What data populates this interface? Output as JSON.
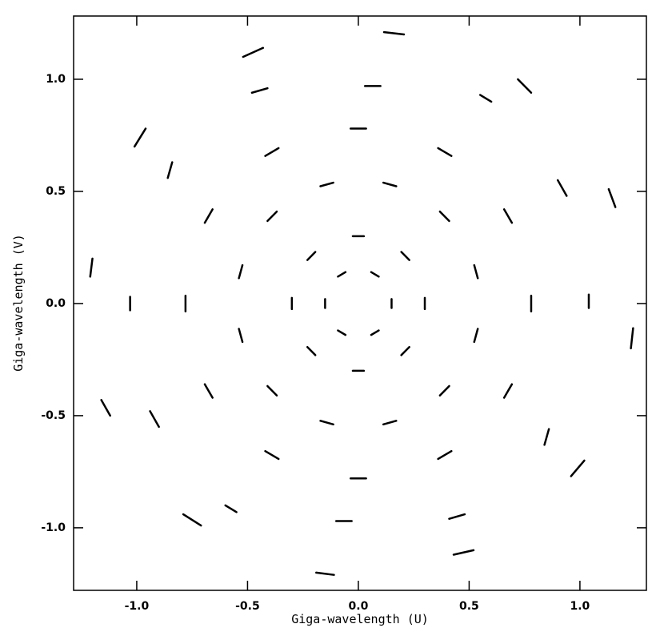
{
  "chart_data": {
    "type": "uv-tracks",
    "xlabel": "Giga-wavelength (U)",
    "ylabel": "Giga-wavelength (V)",
    "xlim": [
      -1.285,
      1.3
    ],
    "ylim": [
      -1.279,
      1.282
    ],
    "xticks": [
      {
        "value": -1,
        "label": "-1.0"
      },
      {
        "value": -0.5,
        "label": "-0.5"
      },
      {
        "value": 0,
        "label": "0.0"
      },
      {
        "value": 0.5,
        "label": "0.5"
      },
      {
        "value": 1,
        "label": "1.0"
      }
    ],
    "yticks": [
      {
        "value": -1,
        "label": "-1.0"
      },
      {
        "value": -0.5,
        "label": "-0.5"
      },
      {
        "value": 0,
        "label": "0.0"
      },
      {
        "value": 0.5,
        "label": "0.5"
      },
      {
        "value": 1,
        "label": "1.0"
      }
    ],
    "color": "#000000",
    "segments": [
      {
        "x": [
          0.116,
          0.206
        ],
        "y": [
          1.21,
          1.2
        ]
      },
      {
        "x": [
          -0.19,
          -0.11
        ],
        "y": [
          -1.2,
          -1.21
        ]
      },
      {
        "x": [
          -0.52,
          -0.43
        ],
        "y": [
          1.1,
          1.14
        ]
      },
      {
        "x": [
          0.43,
          0.52
        ],
        "y": [
          -1.12,
          -1.1
        ]
      },
      {
        "x": [
          0.72,
          0.78
        ],
        "y": [
          1.0,
          0.94
        ]
      },
      {
        "x": [
          -0.79,
          -0.71
        ],
        "y": [
          -0.94,
          -0.99
        ]
      },
      {
        "x": [
          -1.01,
          -0.96
        ],
        "y": [
          0.7,
          0.78
        ]
      },
      {
        "x": [
          0.96,
          1.02
        ],
        "y": [
          -0.77,
          -0.7
        ]
      },
      {
        "x": [
          -1.21,
          -1.2
        ],
        "y": [
          0.12,
          0.2
        ]
      },
      {
        "x": [
          1.23,
          1.24
        ],
        "y": [
          -0.2,
          -0.11
        ]
      },
      {
        "x": [
          -1.03,
          -1.03
        ],
        "y": [
          0.03,
          -0.03
        ]
      },
      {
        "x": [
          1.04,
          1.04
        ],
        "y": [
          0.04,
          -0.02
        ]
      },
      {
        "x": [
          1.13,
          1.16
        ],
        "y": [
          0.51,
          0.43
        ]
      },
      {
        "x": [
          -1.16,
          -1.12
        ],
        "y": [
          -0.43,
          -0.5
        ]
      },
      {
        "x": [
          0.9,
          0.94
        ],
        "y": [
          0.55,
          0.48
        ]
      },
      {
        "x": [
          -0.94,
          -0.9
        ],
        "y": [
          -0.48,
          -0.55
        ]
      },
      {
        "x": [
          0.55,
          0.6
        ],
        "y": [
          0.93,
          0.9
        ]
      },
      {
        "x": [
          -0.6,
          -0.55
        ],
        "y": [
          -0.9,
          -0.93
        ]
      },
      {
        "x": [
          -0.48,
          -0.41
        ],
        "y": [
          0.94,
          0.96
        ]
      },
      {
        "x": [
          0.41,
          0.48
        ],
        "y": [
          -0.96,
          -0.94
        ]
      },
      {
        "x": [
          0.03,
          0.1
        ],
        "y": [
          0.97,
          0.97
        ]
      },
      {
        "x": [
          -0.1,
          -0.03
        ],
        "y": [
          -0.97,
          -0.97
        ]
      },
      {
        "x": [
          -0.86,
          -0.84
        ],
        "y": [
          0.56,
          0.63
        ]
      },
      {
        "x": [
          0.84,
          0.86
        ],
        "y": [
          -0.63,
          -0.56
        ]
      },
      {
        "x": [
          0.78,
          0.78
        ],
        "y": [
          0.035,
          -0.035
        ]
      },
      {
        "x": [
          0.693,
          0.658
        ],
        "y": [
          0.36,
          0.42
        ]
      },
      {
        "x": [
          0.42,
          0.36
        ],
        "y": [
          0.658,
          0.693
        ]
      },
      {
        "x": [
          0.035,
          -0.035
        ],
        "y": [
          0.78,
          0.78
        ]
      },
      {
        "x": [
          -0.36,
          -0.42
        ],
        "y": [
          0.693,
          0.658
        ]
      },
      {
        "x": [
          -0.658,
          -0.693
        ],
        "y": [
          0.42,
          0.36
        ]
      },
      {
        "x": [
          -0.78,
          -0.78
        ],
        "y": [
          0.035,
          -0.035
        ]
      },
      {
        "x": [
          -0.693,
          -0.658
        ],
        "y": [
          -0.36,
          -0.42
        ]
      },
      {
        "x": [
          -0.42,
          -0.36
        ],
        "y": [
          -0.658,
          -0.693
        ]
      },
      {
        "x": [
          -0.035,
          0.035
        ],
        "y": [
          -0.78,
          -0.78
        ]
      },
      {
        "x": [
          0.36,
          0.42
        ],
        "y": [
          -0.693,
          -0.658
        ]
      },
      {
        "x": [
          0.658,
          0.693
        ],
        "y": [
          -0.42,
          -0.36
        ]
      },
      {
        "x": [
          0.539,
          0.523
        ],
        "y": [
          0.113,
          0.171
        ]
      },
      {
        "x": [
          0.41,
          0.368
        ],
        "y": [
          0.368,
          0.41
        ]
      },
      {
        "x": [
          0.171,
          0.113
        ],
        "y": [
          0.523,
          0.539
        ]
      },
      {
        "x": [
          -0.113,
          -0.171
        ],
        "y": [
          0.539,
          0.523
        ]
      },
      {
        "x": [
          -0.368,
          -0.41
        ],
        "y": [
          0.41,
          0.368
        ]
      },
      {
        "x": [
          -0.523,
          -0.539
        ],
        "y": [
          0.171,
          0.113
        ]
      },
      {
        "x": [
          -0.539,
          -0.523
        ],
        "y": [
          -0.113,
          -0.171
        ]
      },
      {
        "x": [
          -0.41,
          -0.368
        ],
        "y": [
          -0.368,
          -0.41
        ]
      },
      {
        "x": [
          -0.171,
          -0.113
        ],
        "y": [
          -0.523,
          -0.539
        ]
      },
      {
        "x": [
          0.113,
          0.171
        ],
        "y": [
          -0.539,
          -0.523
        ]
      },
      {
        "x": [
          0.368,
          0.41
        ],
        "y": [
          -0.41,
          -0.368
        ]
      },
      {
        "x": [
          0.523,
          0.539
        ],
        "y": [
          -0.171,
          -0.113
        ]
      },
      {
        "x": [
          0.3,
          0.3
        ],
        "y": [
          -0.025,
          0.025
        ]
      },
      {
        "x": [
          0.23,
          0.194
        ],
        "y": [
          0.194,
          0.23
        ]
      },
      {
        "x": [
          0.025,
          -0.025
        ],
        "y": [
          0.3,
          0.3
        ]
      },
      {
        "x": [
          -0.194,
          -0.23
        ],
        "y": [
          0.23,
          0.194
        ]
      },
      {
        "x": [
          -0.3,
          -0.3
        ],
        "y": [
          0.025,
          -0.025
        ]
      },
      {
        "x": [
          -0.23,
          -0.194
        ],
        "y": [
          -0.194,
          -0.23
        ]
      },
      {
        "x": [
          -0.025,
          0.025
        ],
        "y": [
          -0.3,
          -0.3
        ]
      },
      {
        "x": [
          0.194,
          0.23
        ],
        "y": [
          -0.23,
          -0.194
        ]
      },
      {
        "x": [
          0.15,
          0.15
        ],
        "y": [
          -0.02,
          0.02
        ]
      },
      {
        "x": [
          0.092,
          0.058
        ],
        "y": [
          0.12,
          0.14
        ]
      },
      {
        "x": [
          -0.058,
          -0.092
        ],
        "y": [
          0.14,
          0.12
        ]
      },
      {
        "x": [
          -0.15,
          -0.15
        ],
        "y": [
          0.02,
          -0.02
        ]
      },
      {
        "x": [
          -0.092,
          -0.058
        ],
        "y": [
          -0.12,
          -0.14
        ]
      },
      {
        "x": [
          0.058,
          0.092
        ],
        "y": [
          -0.14,
          -0.12
        ]
      }
    ]
  }
}
